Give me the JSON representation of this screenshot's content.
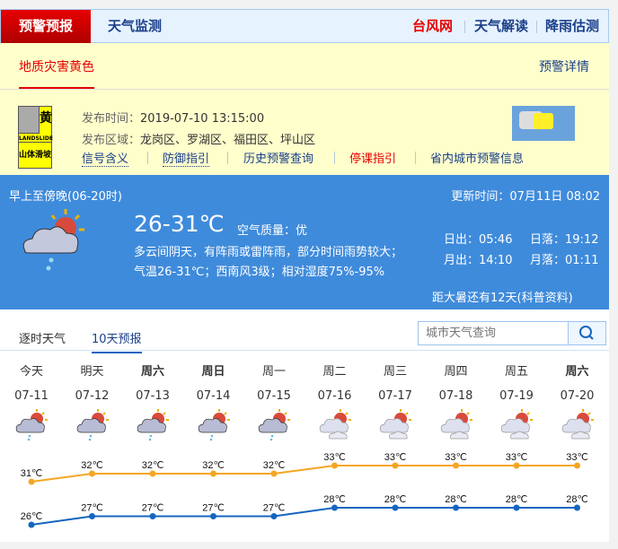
{
  "nav": {
    "active_tab": "预警预报",
    "tab2": "天气监测",
    "right_links": [
      {
        "label": "台风网",
        "color": "#e60000"
      },
      {
        "label": "天气解读",
        "color": "#1a3f8a"
      },
      {
        "label": "降雨估测",
        "color": "#1a3f8a"
      }
    ]
  },
  "warning": {
    "tab": "地质灾害黄色",
    "detail_link": "预警详情",
    "icon": {
      "level": "黄",
      "en": "LANDSLIDE",
      "cn": "山体滑坡",
      "color": "#ffff00"
    },
    "time_label": "发布时间：",
    "time": "2019-07-10 13:15:00",
    "area_label": "发布区域：",
    "area": "龙岗区、罗湖区、福田区、坪山区",
    "links": [
      {
        "label": "信号含义",
        "color": "#1a3f8a"
      },
      {
        "label": "防御指引",
        "color": "#1a3f8a"
      },
      {
        "label": "历史预警查询",
        "color": "#1a3f8a"
      },
      {
        "label": "停课指引",
        "color": "#e60000"
      },
      {
        "label": "省内城市预警信息",
        "color": "#1a3f8a"
      }
    ]
  },
  "today": {
    "period": "早上至傍晚(06-20时)",
    "update": "更新时间：07月11日 08:02",
    "temp": "26-31℃",
    "aqi_label": "空气质量：",
    "aqi": "优",
    "desc1": "多云间阴天，有阵雨或雷阵雨，部分时间雨势较大；",
    "desc2": "气温26-31℃；西南风3级；相对湿度75%-95%",
    "sunrise": "日出：05:46",
    "sunset": "日落：19:12",
    "moonrise": "月出：14:10",
    "moonset": "月落：01:11",
    "solar_term": "距大暑还有12天(科普资料)",
    "icon": "cloudy-sun-rain-icon"
  },
  "tabs": {
    "hourly": "逐时天气",
    "ten_day": "10天预报",
    "search_placeholder": "城市天气查询"
  },
  "forecast": {
    "days": [
      {
        "day": "今天",
        "date": "07-11",
        "hi": 31,
        "lo": 26,
        "hi_label": "31℃",
        "lo_label": "26℃",
        "icon": "rain"
      },
      {
        "day": "明天",
        "date": "07-12",
        "hi": 32,
        "lo": 27,
        "hi_label": "32℃",
        "lo_label": "27℃",
        "icon": "rain"
      },
      {
        "day": "周六",
        "date": "07-13",
        "hi": 32,
        "lo": 27,
        "hi_label": "32℃",
        "lo_label": "27℃",
        "icon": "rain",
        "bold": true
      },
      {
        "day": "周日",
        "date": "07-14",
        "hi": 32,
        "lo": 27,
        "hi_label": "32℃",
        "lo_label": "27℃",
        "icon": "rain",
        "bold": true
      },
      {
        "day": "周一",
        "date": "07-15",
        "hi": 32,
        "lo": 27,
        "hi_label": "32℃",
        "lo_label": "27℃",
        "icon": "rain"
      },
      {
        "day": "周二",
        "date": "07-16",
        "hi": 33,
        "lo": 28,
        "hi_label": "33℃",
        "lo_label": "28℃",
        "icon": "cloudy"
      },
      {
        "day": "周三",
        "date": "07-17",
        "hi": 33,
        "lo": 28,
        "hi_label": "33℃",
        "lo_label": "28℃",
        "icon": "cloudy"
      },
      {
        "day": "周四",
        "date": "07-18",
        "hi": 33,
        "lo": 28,
        "hi_label": "33℃",
        "lo_label": "28℃",
        "icon": "cloudy"
      },
      {
        "day": "周五",
        "date": "07-19",
        "hi": 33,
        "lo": 28,
        "hi_label": "33℃",
        "lo_label": "28℃",
        "icon": "cloudy"
      },
      {
        "day": "周六",
        "date": "07-20",
        "hi": 33,
        "lo": 28,
        "hi_label": "33℃",
        "lo_label": "28℃",
        "icon": "cloudy",
        "bold": true
      }
    ],
    "hi_color": "#f5a623",
    "lo_color": "#1565c0"
  }
}
